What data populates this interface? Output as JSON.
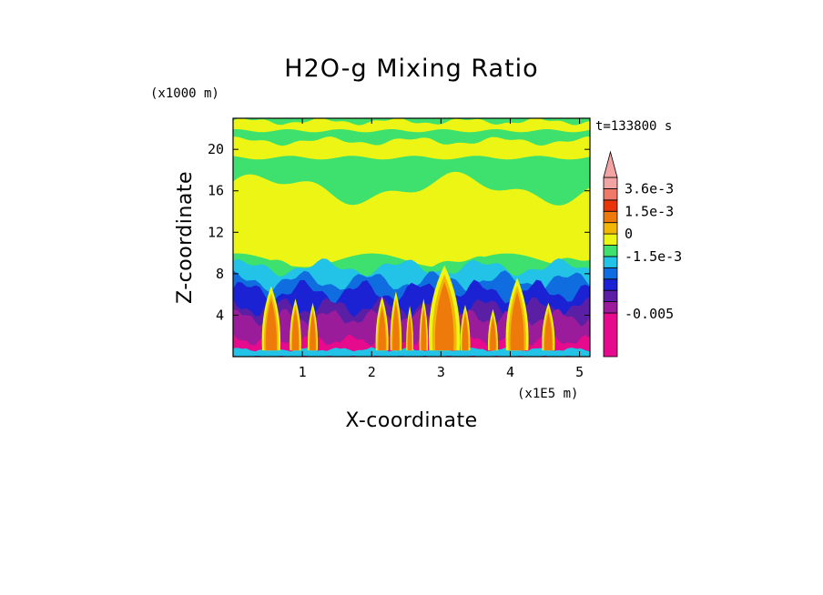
{
  "chart_data": {
    "type": "heatmap",
    "title": "H2O-g Mixing Ratio",
    "xlabel": "X-coordinate",
    "ylabel": "Z-coordinate",
    "x_unit": "(x1E5 m)",
    "y_unit": "(x1000 m)",
    "time_label": "t=133800 s",
    "x_ticks": [
      "1",
      "2",
      "3",
      "4",
      "5"
    ],
    "y_ticks": [
      "4",
      "8",
      "12",
      "16",
      "20"
    ],
    "xlim": [
      0,
      5.15
    ],
    "ylim": [
      0,
      23
    ],
    "colorbar": {
      "labels": [
        "3.6e-3",
        "1.5e-3",
        "0",
        "-1.5e-3",
        "-0.005"
      ],
      "colors": [
        "#e60a8c",
        "#9b1c9b",
        "#5a1fa5",
        "#1a22d4",
        "#0f6de0",
        "#22c3e6",
        "#3ee06e",
        "#ecf514",
        "#f2b705",
        "#ee7a0b",
        "#e8350a",
        "#f07a6a",
        "#f2a3a3"
      ]
    }
  }
}
